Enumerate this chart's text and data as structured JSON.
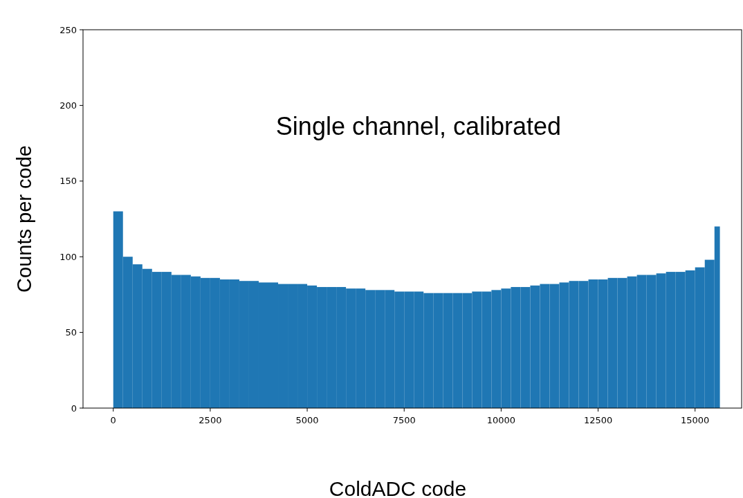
{
  "chart_data": {
    "type": "histogram",
    "xlabel": "ColdADC code",
    "ylabel": "Counts per code",
    "annotations": [
      "Single channel, calibrated"
    ],
    "bins": [
      0,
      250,
      500,
      750,
      1000,
      1250,
      1500,
      1750,
      2000,
      2250,
      2500,
      2750,
      3000,
      3250,
      3500,
      3750,
      4000,
      4250,
      4500,
      4750,
      5000,
      5250,
      5500,
      5750,
      6000,
      6250,
      6500,
      6750,
      7000,
      7250,
      7500,
      7750,
      8000,
      8250,
      8500,
      8750,
      9000,
      9250,
      9500,
      9750,
      10000,
      10250,
      10500,
      10750,
      11000,
      11250,
      11500,
      11750,
      12000,
      12250,
      12500,
      12750,
      13000,
      13250,
      13500,
      13750,
      14000,
      14250,
      14500,
      14750,
      15000,
      15250,
      15500,
      15640
    ],
    "values": [
      130,
      100,
      95,
      92,
      90,
      90,
      88,
      88,
      87,
      86,
      86,
      85,
      85,
      84,
      84,
      83,
      83,
      82,
      82,
      82,
      81,
      80,
      80,
      80,
      79,
      79,
      78,
      78,
      78,
      77,
      77,
      77,
      76,
      76,
      76,
      76,
      76,
      77,
      77,
      78,
      79,
      80,
      80,
      81,
      82,
      82,
      83,
      84,
      84,
      85,
      85,
      86,
      86,
      87,
      88,
      88,
      89,
      90,
      90,
      91,
      93,
      98,
      120
    ],
    "color": "#1f77b4",
    "xlim": [
      -780,
      16200
    ],
    "xticks": [
      0,
      2500,
      5000,
      7500,
      10000,
      12500,
      15000
    ],
    "ylim": [
      0,
      250
    ],
    "yticks": [
      0,
      50,
      100,
      150,
      200,
      250
    ],
    "grid": false
  }
}
